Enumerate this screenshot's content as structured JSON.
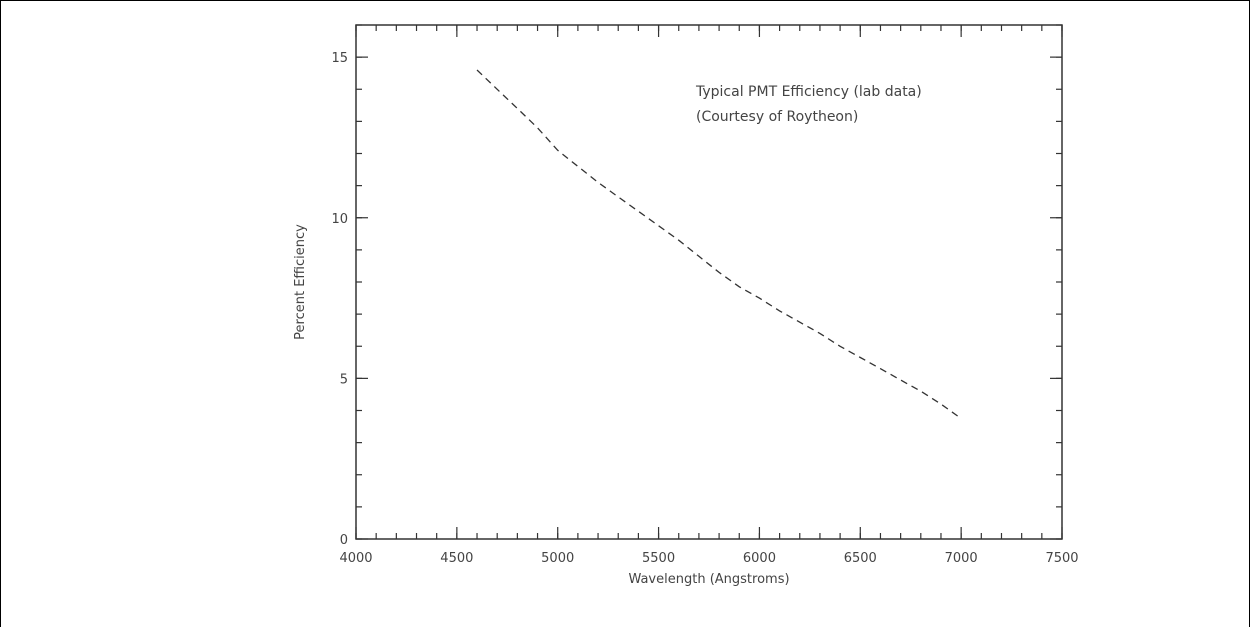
{
  "chart_data": {
    "type": "line",
    "title": "",
    "xlabel": "Wavelength (Angstroms)",
    "ylabel": "Percent Efficiency",
    "xlim": [
      4000,
      7500
    ],
    "ylim": [
      0,
      16
    ],
    "xticks": [
      4000,
      4500,
      5000,
      5500,
      6000,
      6500,
      7000,
      7500
    ],
    "xtick_labels": [
      "4000",
      "4500",
      "5000",
      "5500",
      "6000",
      "6500",
      "7000",
      "7500"
    ],
    "yticks": [
      0,
      5,
      10,
      15
    ],
    "ytick_labels": [
      "0",
      "5",
      "10",
      "15"
    ],
    "x_minor_step": 100,
    "y_minor_step": 1,
    "grid": false,
    "line_style": "dashed",
    "line_color": "#333333",
    "annotations": [
      "Typical PMT Efficiency (lab data)",
      "(Courtesy of Roytheon)"
    ],
    "series": [
      {
        "x": [
          4600,
          4700,
          4800,
          4900,
          5000,
          5100,
          5200,
          5300,
          5400,
          5500,
          5600,
          5700,
          5800,
          5900,
          6000,
          6100,
          6200,
          6300,
          6400,
          6500,
          6600,
          6700,
          6800,
          6900,
          7000
        ],
        "y": [
          14.6,
          14.0,
          13.4,
          12.8,
          12.1,
          11.6,
          11.1,
          10.65,
          10.2,
          9.75,
          9.3,
          8.8,
          8.3,
          7.85,
          7.5,
          7.1,
          6.75,
          6.4,
          6.0,
          5.65,
          5.3,
          4.95,
          4.6,
          4.2,
          3.75
        ]
      }
    ]
  }
}
